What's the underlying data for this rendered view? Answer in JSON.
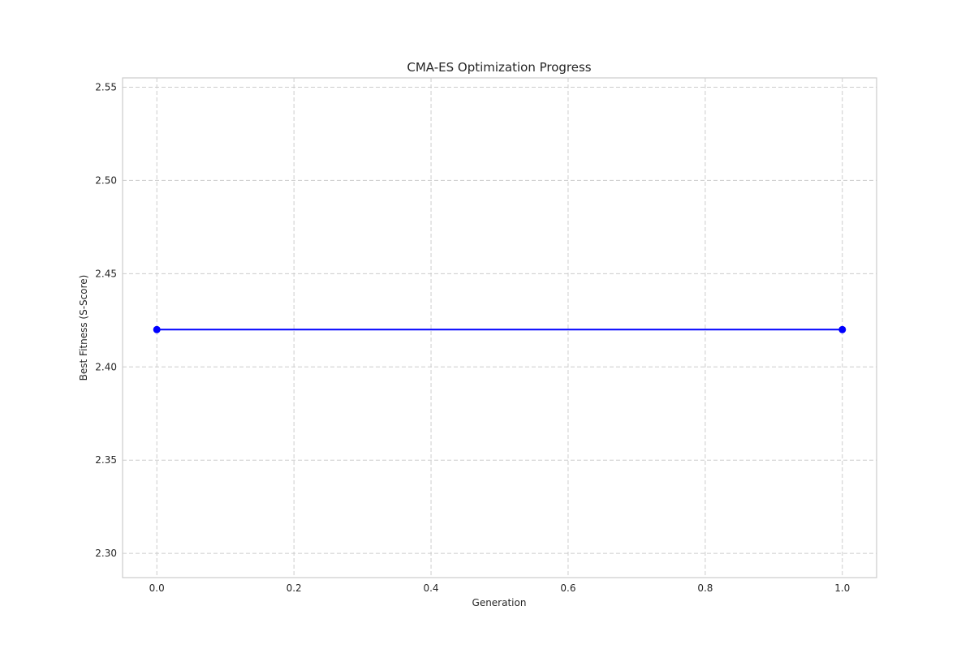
{
  "chart_data": {
    "type": "line",
    "title": "CMA-ES Optimization Progress",
    "xlabel": "Generation",
    "ylabel": "Best Fitness (S-Score)",
    "xlim": [
      -0.05,
      1.05
    ],
    "ylim": [
      2.287,
      2.555
    ],
    "xticks": [
      0.0,
      0.2,
      0.4,
      0.6,
      0.8,
      1.0
    ],
    "xtick_labels": [
      "0.0",
      "0.2",
      "0.4",
      "0.6",
      "0.8",
      "1.0"
    ],
    "yticks": [
      2.3,
      2.35,
      2.4,
      2.45,
      2.5,
      2.55
    ],
    "ytick_labels": [
      "2.30",
      "2.35",
      "2.40",
      "2.45",
      "2.50",
      "2.55"
    ],
    "grid": true,
    "series": [
      {
        "color": "#0000ff",
        "marker": "circle",
        "x": [
          0,
          1
        ],
        "y": [
          2.42,
          2.42
        ]
      }
    ]
  }
}
